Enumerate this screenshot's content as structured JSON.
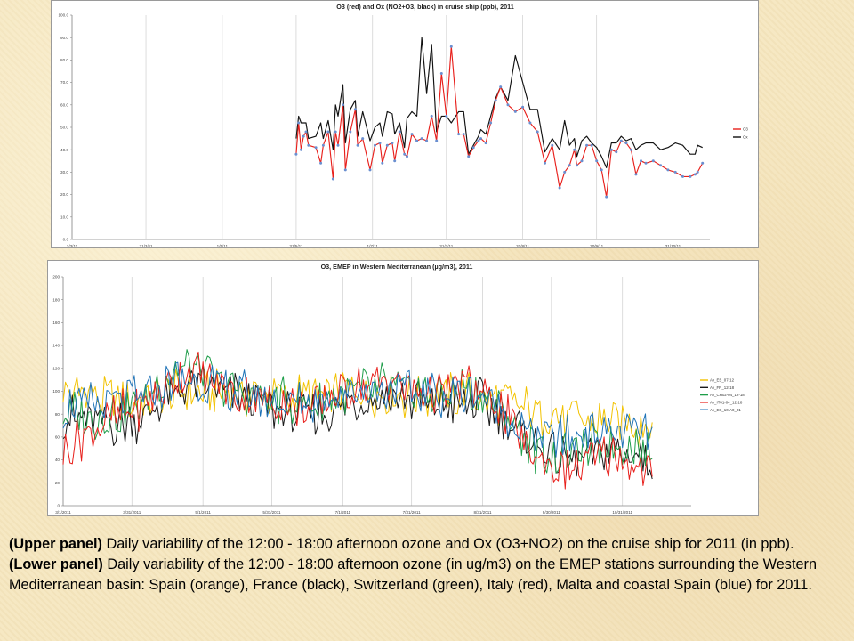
{
  "chart_data": [
    {
      "type": "line",
      "title": "O3 (red) and Ox (NO2+O3, black) in cruise ship (ppb), 2011",
      "xlabel": "",
      "ylabel": "",
      "ylim": [
        0,
        100
      ],
      "y_ticks": [
        "0.0",
        "10.0",
        "20.0",
        "30.0",
        "40.0",
        "50.0",
        "60.0",
        "70.0",
        "80.0",
        "90.0",
        "100.0"
      ],
      "x_ticks": [
        "1/3/11",
        "31/3/11",
        "1/5/11",
        "31/5/11",
        "1/7/11",
        "31/7/11",
        "31/8/11",
        "30/9/11",
        "31/10/11"
      ],
      "x_range": [
        "2011-03-01",
        "2011-11-15"
      ],
      "grid": "vertical",
      "legend_position": "right",
      "x_dates": [
        "2011-05-31",
        "2011-06-01",
        "2011-06-02",
        "2011-06-03",
        "2011-06-04",
        "2011-06-05",
        "2011-06-08",
        "2011-06-10",
        "2011-06-11",
        "2011-06-13",
        "2011-06-15",
        "2011-06-16",
        "2011-06-17",
        "2011-06-19",
        "2011-06-20",
        "2011-06-22",
        "2011-06-24",
        "2011-06-25",
        "2011-06-27",
        "2011-06-30",
        "2011-07-02",
        "2011-07-04",
        "2011-07-05",
        "2011-07-07",
        "2011-07-09",
        "2011-07-10",
        "2011-07-12",
        "2011-07-14",
        "2011-07-15",
        "2011-07-17",
        "2011-07-19",
        "2011-07-21",
        "2011-07-23",
        "2011-07-25",
        "2011-07-27",
        "2011-07-29",
        "2011-07-31",
        "2011-08-02",
        "2011-08-05",
        "2011-08-07",
        "2011-08-09",
        "2011-08-11",
        "2011-08-13",
        "2011-08-14",
        "2011-08-16",
        "2011-08-18",
        "2011-08-20",
        "2011-08-22",
        "2011-08-25",
        "2011-08-28",
        "2011-08-31",
        "2011-09-03",
        "2011-09-06",
        "2011-09-09",
        "2011-09-12",
        "2011-09-15",
        "2011-09-17",
        "2011-09-19",
        "2011-09-21",
        "2011-09-22",
        "2011-09-24",
        "2011-09-26",
        "2011-09-28",
        "2011-09-30",
        "2011-10-02",
        "2011-10-04",
        "2011-10-06",
        "2011-10-08",
        "2011-10-10",
        "2011-10-12",
        "2011-10-14",
        "2011-10-16",
        "2011-10-18",
        "2011-10-20",
        "2011-10-23",
        "2011-10-26",
        "2011-10-29",
        "2011-11-01",
        "2011-11-04",
        "2011-11-07",
        "2011-11-09",
        "2011-11-10",
        "2011-11-12"
      ],
      "series": [
        {
          "name": "O3",
          "color": "#e8201c",
          "markers": true,
          "values": [
            38,
            52,
            40,
            46,
            48,
            42,
            41,
            34,
            42,
            48,
            27,
            48,
            42,
            60,
            31,
            48,
            58,
            42,
            45,
            31,
            42,
            43,
            34,
            42,
            43,
            35,
            48,
            38,
            37,
            47,
            44,
            45,
            44,
            55,
            44,
            74,
            55,
            86,
            47,
            47,
            37,
            41,
            44,
            45,
            43,
            52,
            62,
            68,
            60,
            57,
            59,
            52,
            48,
            34,
            42,
            23,
            30,
            33,
            40,
            33,
            35,
            42,
            42,
            35,
            31,
            19,
            40,
            39,
            44,
            43,
            40,
            29,
            35,
            34,
            35,
            33,
            31,
            30,
            28,
            28,
            29,
            30,
            34
          ]
        },
        {
          "name": "Ox",
          "color": "#111111",
          "markers": false,
          "values": [
            45,
            55,
            52,
            52,
            52,
            45,
            46,
            52,
            45,
            53,
            40,
            60,
            55,
            69,
            43,
            58,
            62,
            46,
            57,
            44,
            50,
            52,
            46,
            57,
            56,
            47,
            52,
            41,
            54,
            57,
            55,
            90,
            65,
            87,
            48,
            55,
            55,
            52,
            57,
            57,
            38,
            42,
            46,
            49,
            47,
            55,
            63,
            68,
            62,
            82,
            70,
            58,
            58,
            39,
            45,
            40,
            53,
            42,
            45,
            37,
            44,
            46,
            43,
            41,
            37,
            32,
            43,
            43,
            46,
            44,
            45,
            40,
            42,
            43,
            43,
            40,
            41,
            43,
            42,
            38,
            38,
            42,
            41
          ]
        }
      ]
    },
    {
      "type": "line",
      "title": "O3, EMEP in Western Mediterranean (µg/m3), 2011",
      "xlabel": "",
      "ylabel": "",
      "ylim": [
        0,
        200
      ],
      "y_ticks": [
        "0",
        "20",
        "40",
        "60",
        "80",
        "100",
        "120",
        "140",
        "160",
        "180",
        "200"
      ],
      "x_ticks": [
        "3/1/2011",
        "3/31/2011",
        "5/1/2011",
        "5/31/2011",
        "7/1/2011",
        "7/31/2011",
        "8/31/2011",
        "9/30/2011",
        "10/31/2011"
      ],
      "x_range": [
        "2011-03-01",
        "2011-11-30"
      ],
      "grid": "vertical",
      "legend_position": "right",
      "x_start": "2011-03-01",
      "x_end": "2011-11-13",
      "series": [
        {
          "name": "Av_ES_07-12",
          "color": "#f2c200",
          "anchors": [
            100,
            98,
            96,
            94,
            92,
            95,
            97,
            99,
            100,
            99,
            97,
            96,
            95,
            96,
            98,
            100,
            99,
            97,
            95,
            96,
            97,
            96,
            95,
            92,
            88,
            82,
            78,
            76,
            74,
            73,
            72,
            72
          ]
        },
        {
          "name": "Av_FR_12-18",
          "color": "#1a1a1a",
          "anchors": [
            80,
            75,
            70,
            72,
            76,
            86,
            100,
            107,
            100,
            97,
            94,
            86,
            80,
            78,
            82,
            90,
            92,
            96,
            92,
            90,
            88,
            92,
            90,
            80,
            66,
            52,
            40,
            40,
            45,
            47,
            45,
            42
          ]
        },
        {
          "name": "Av_CH02-04_12-18",
          "color": "#1e9e4a",
          "anchors": [
            84,
            80,
            78,
            82,
            88,
            105,
            120,
            118,
            110,
            100,
            96,
            92,
            90,
            88,
            92,
            100,
            102,
            106,
            100,
            98,
            96,
            104,
            98,
            86,
            62,
            48,
            44,
            47,
            54,
            56,
            52,
            48
          ]
        },
        {
          "name": "Av_IT01-04_12-18",
          "color": "#e8201c",
          "anchors": [
            50,
            62,
            70,
            80,
            88,
            98,
            112,
            118,
            104,
            98,
            96,
            90,
            88,
            86,
            92,
            102,
            104,
            110,
            104,
            100,
            97,
            106,
            100,
            86,
            60,
            40,
            34,
            36,
            40,
            44,
            36,
            28
          ]
        },
        {
          "name": "Av_ES_10-A0_01",
          "color": "#1f73b7",
          "anchors": [
            88,
            87,
            88,
            92,
            94,
            100,
            108,
            108,
            104,
            98,
            96,
            92,
            90,
            90,
            94,
            100,
            100,
            102,
            100,
            98,
            96,
            100,
            96,
            86,
            70,
            62,
            58,
            60,
            64,
            66,
            66,
            64
          ]
        }
      ]
    }
  ],
  "caption": {
    "upper_label": "(Upper panel)",
    "upper_text": " Daily variability of the 12:00 - 18:00 afternoon ozone and Ox (O3+NO2) on the cruise ship for 2011 (in ppb).",
    "lower_label": "(Lower panel)",
    "lower_text": " Daily variability of the 12:00 - 18:00 afternoon ozone  (in ug/m3) on the EMEP stations surrounding the Western Mediterranean basin: Spain (orange), France (black), Switzerland (green), Italy (red), Malta and coastal Spain (blue) for 2011."
  }
}
